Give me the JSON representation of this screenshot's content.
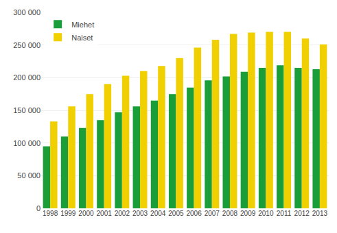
{
  "chart_data": {
    "type": "bar",
    "categories": [
      "1998",
      "1999",
      "2000",
      "2001",
      "2002",
      "2003",
      "2004",
      "2005",
      "2006",
      "2007",
      "2008",
      "2009",
      "2010",
      "2011",
      "2012",
      "2013"
    ],
    "series": [
      {
        "name": "Miehet",
        "color": "#1a9e3a",
        "values": [
          95000,
          110000,
          123000,
          135000,
          147000,
          156000,
          165000,
          175000,
          185000,
          196000,
          202000,
          209000,
          215000,
          219000,
          215000,
          213000
        ]
      },
      {
        "name": "Naiset",
        "color": "#f0d000",
        "values": [
          133000,
          156000,
          175000,
          190000,
          203000,
          210000,
          218000,
          230000,
          246000,
          258000,
          267000,
          269000,
          270000,
          270000,
          260000,
          251000
        ]
      }
    ],
    "ylim": [
      0,
      300000
    ],
    "yticks": [
      0,
      {
        "value": 50000,
        "label": "50 000"
      },
      {
        "value": 100000,
        "label": "100 000"
      },
      {
        "value": 150000,
        "label": "150 000"
      },
      {
        "value": 200000,
        "label": "200 000"
      },
      {
        "value": 250000,
        "label": "250 000"
      },
      {
        "value": 300000,
        "label": "300 000"
      }
    ],
    "grid": true,
    "legend": "upper left"
  }
}
